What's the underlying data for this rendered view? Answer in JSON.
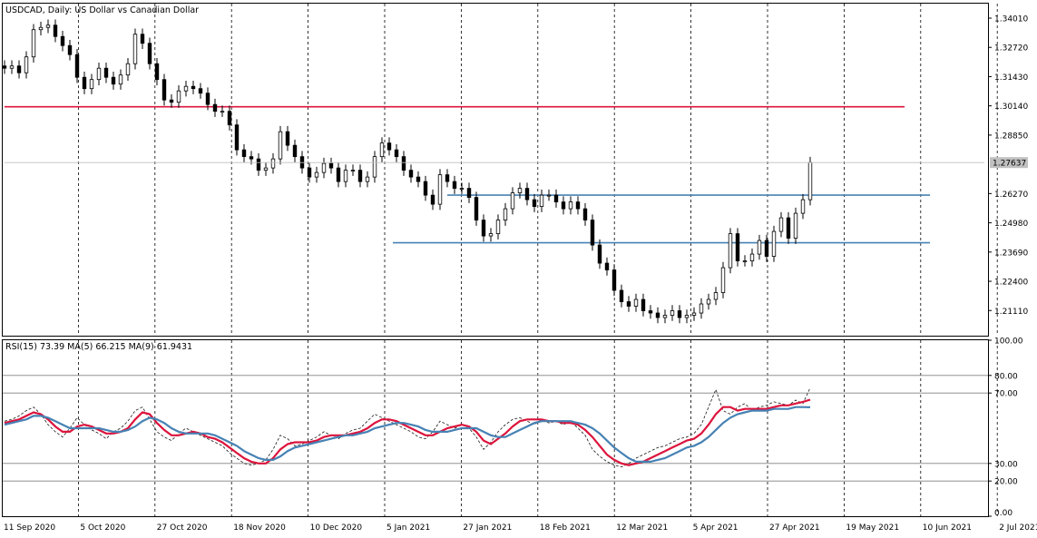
{
  "chart_data": [
    {
      "type": "candlestick",
      "title": "USDCAD, Daily:  US Dollar vs Canadian Dollar",
      "ylim": [
        1.2,
        1.3465
      ],
      "y_ticks": [
        "1.34010",
        "1.32720",
        "1.31430",
        "1.30140",
        "1.28850",
        "1.27637",
        "1.26270",
        "1.24980",
        "1.23690",
        "1.22400",
        "1.21110"
      ],
      "last_price": "1.27637",
      "x_labels": [
        "11 Sep 2020",
        "5 Oct 2020",
        "27 Oct 2020",
        "18 Nov 2020",
        "10 Dec 2020",
        "5 Jan 2021",
        "27 Jan 2021",
        "18 Feb 2021",
        "12 Mar 2021",
        "5 Apr 2021",
        "27 Apr 2021",
        "19 May 2021",
        "10 Jun 2021",
        "2 Jul 2021"
      ],
      "bars": [
        {
          "t": 0,
          "c": 1.318
        },
        {
          "t": 2,
          "c": 1.319
        },
        {
          "t": 4,
          "c": 1.316
        },
        {
          "t": 6,
          "c": 1.323
        },
        {
          "t": 8,
          "c": 1.335
        },
        {
          "t": 10,
          "c": 1.336
        },
        {
          "t": 12,
          "c": 1.337
        },
        {
          "t": 14,
          "c": 1.332
        },
        {
          "t": 16,
          "c": 1.328
        },
        {
          "t": 18,
          "c": 1.324
        },
        {
          "t": 20,
          "c": 1.314
        },
        {
          "t": 22,
          "c": 1.309
        },
        {
          "t": 24,
          "c": 1.313
        },
        {
          "t": 26,
          "c": 1.318
        },
        {
          "t": 28,
          "c": 1.314
        },
        {
          "t": 30,
          "c": 1.311
        },
        {
          "t": 32,
          "c": 1.315
        },
        {
          "t": 34,
          "c": 1.32
        },
        {
          "t": 36,
          "c": 1.333
        },
        {
          "t": 38,
          "c": 1.329
        },
        {
          "t": 40,
          "c": 1.32
        },
        {
          "t": 42,
          "c": 1.313
        },
        {
          "t": 44,
          "c": 1.304
        },
        {
          "t": 46,
          "c": 1.303
        },
        {
          "t": 48,
          "c": 1.308
        },
        {
          "t": 50,
          "c": 1.31
        },
        {
          "t": 52,
          "c": 1.309
        },
        {
          "t": 54,
          "c": 1.307
        },
        {
          "t": 56,
          "c": 1.302
        },
        {
          "t": 58,
          "c": 1.299
        },
        {
          "t": 60,
          "c": 1.299
        },
        {
          "t": 62,
          "c": 1.293
        },
        {
          "t": 64,
          "c": 1.282
        },
        {
          "t": 66,
          "c": 1.279
        },
        {
          "t": 68,
          "c": 1.278
        },
        {
          "t": 70,
          "c": 1.273
        },
        {
          "t": 72,
          "c": 1.274
        },
        {
          "t": 74,
          "c": 1.278
        },
        {
          "t": 76,
          "c": 1.29
        },
        {
          "t": 78,
          "c": 1.284
        },
        {
          "t": 80,
          "c": 1.279
        },
        {
          "t": 82,
          "c": 1.274
        },
        {
          "t": 84,
          "c": 1.27
        },
        {
          "t": 86,
          "c": 1.272
        },
        {
          "t": 88,
          "c": 1.276
        },
        {
          "t": 90,
          "c": 1.274
        },
        {
          "t": 92,
          "c": 1.268
        },
        {
          "t": 94,
          "c": 1.273
        },
        {
          "t": 96,
          "c": 1.273
        },
        {
          "t": 98,
          "c": 1.268
        },
        {
          "t": 100,
          "c": 1.27
        },
        {
          "t": 102,
          "c": 1.279
        },
        {
          "t": 104,
          "c": 1.285
        },
        {
          "t": 106,
          "c": 1.282
        },
        {
          "t": 108,
          "c": 1.279
        },
        {
          "t": 110,
          "c": 1.273
        },
        {
          "t": 112,
          "c": 1.27
        },
        {
          "t": 114,
          "c": 1.268
        },
        {
          "t": 116,
          "c": 1.262
        },
        {
          "t": 118,
          "c": 1.258
        },
        {
          "t": 120,
          "c": 1.271
        },
        {
          "t": 122,
          "c": 1.268
        },
        {
          "t": 124,
          "c": 1.265
        },
        {
          "t": 126,
          "c": 1.265
        },
        {
          "t": 128,
          "c": 1.261
        },
        {
          "t": 130,
          "c": 1.251
        },
        {
          "t": 132,
          "c": 1.244
        },
        {
          "t": 134,
          "c": 1.245
        },
        {
          "t": 136,
          "c": 1.251
        },
        {
          "t": 138,
          "c": 1.256
        },
        {
          "t": 140,
          "c": 1.263
        },
        {
          "t": 142,
          "c": 1.265
        },
        {
          "t": 144,
          "c": 1.26
        },
        {
          "t": 146,
          "c": 1.257
        },
        {
          "t": 148,
          "c": 1.262
        },
        {
          "t": 150,
          "c": 1.262
        },
        {
          "t": 152,
          "c": 1.259
        },
        {
          "t": 154,
          "c": 1.256
        },
        {
          "t": 156,
          "c": 1.259
        },
        {
          "t": 158,
          "c": 1.256
        },
        {
          "t": 160,
          "c": 1.251
        },
        {
          "t": 162,
          "c": 1.24
        },
        {
          "t": 164,
          "c": 1.232
        },
        {
          "t": 166,
          "c": 1.229
        },
        {
          "t": 168,
          "c": 1.22
        },
        {
          "t": 170,
          "c": 1.215
        },
        {
          "t": 172,
          "c": 1.213
        },
        {
          "t": 174,
          "c": 1.216
        },
        {
          "t": 176,
          "c": 1.211
        },
        {
          "t": 178,
          "c": 1.21
        },
        {
          "t": 180,
          "c": 1.208
        },
        {
          "t": 182,
          "c": 1.209
        },
        {
          "t": 184,
          "c": 1.211
        },
        {
          "t": 186,
          "c": 1.208
        },
        {
          "t": 188,
          "c": 1.209
        },
        {
          "t": 190,
          "c": 1.21
        },
        {
          "t": 192,
          "c": 1.214
        },
        {
          "t": 194,
          "c": 1.216
        },
        {
          "t": 196,
          "c": 1.219
        },
        {
          "t": 198,
          "c": 1.23
        },
        {
          "t": 200,
          "c": 1.245
        },
        {
          "t": 202,
          "c": 1.233
        },
        {
          "t": 204,
          "c": 1.233
        },
        {
          "t": 206,
          "c": 1.236
        },
        {
          "t": 208,
          "c": 1.242
        },
        {
          "t": 210,
          "c": 1.235
        },
        {
          "t": 212,
          "c": 1.246
        },
        {
          "t": 214,
          "c": 1.252
        },
        {
          "t": 216,
          "c": 1.243
        },
        {
          "t": 218,
          "c": 1.254
        },
        {
          "t": 220,
          "c": 1.26
        },
        {
          "t": 222,
          "c": 1.2764
        }
      ],
      "x_span": 270,
      "hlines": [
        {
          "name": "resistance",
          "value": 1.301,
          "color": "#dc143c",
          "x_from": 0,
          "x_to": 248
        },
        {
          "name": "upper-support",
          "value": 1.262,
          "color": "#4682b4",
          "x_from": 122,
          "x_to": 255
        },
        {
          "name": "lower-support",
          "value": 1.241,
          "color": "#4682b4",
          "x_from": 107,
          "x_to": 255
        }
      ],
      "grid": "vertical dashed",
      "bull_color": "#000000",
      "bear_color": "#000000"
    },
    {
      "type": "line",
      "title": "RSI(15) 73.39 MA(5) 66.215 MA(9) 61.9431",
      "ylim": [
        0,
        100
      ],
      "y_ticks": [
        "100.00",
        "80.00",
        "70.00",
        "30.00",
        "20.00",
        "0.00"
      ],
      "levels": [
        80,
        70,
        30,
        20
      ],
      "series": [
        {
          "key": "rsi",
          "values": [
            54,
            55,
            57,
            60,
            62,
            58,
            52,
            48,
            45,
            50,
            56,
            52,
            49,
            47,
            44,
            48,
            50,
            54,
            60,
            62,
            55,
            48,
            45,
            43,
            47,
            50,
            48,
            46,
            44,
            42,
            40,
            36,
            33,
            30,
            29,
            30,
            32,
            38,
            46,
            44,
            40,
            41,
            43,
            45,
            48,
            46,
            44,
            47,
            49,
            50,
            54,
            58,
            56,
            54,
            52,
            50,
            48,
            45,
            44,
            48,
            54,
            52,
            50,
            52,
            50,
            45,
            38,
            42,
            48,
            52,
            55,
            56,
            54,
            52,
            55,
            53,
            54,
            52,
            54,
            50,
            46,
            38,
            34,
            31,
            29,
            28,
            30,
            33,
            35,
            37,
            39,
            40,
            42,
            44,
            45,
            47,
            52,
            62,
            72,
            60,
            58,
            62,
            64,
            60,
            62,
            63,
            65,
            64,
            63,
            66,
            64,
            73
          ],
          "color": "#1a1a1a",
          "dashed": true
        },
        {
          "key": "ma5",
          "values": [
            53,
            54,
            55,
            57,
            59,
            58,
            55,
            51,
            48,
            48,
            51,
            52,
            51,
            49,
            47,
            47,
            48,
            50,
            55,
            59,
            58,
            53,
            49,
            46,
            46,
            47,
            48,
            47,
            45,
            44,
            42,
            39,
            36,
            33,
            31,
            30,
            30,
            33,
            38,
            41,
            42,
            42,
            42,
            43,
            45,
            46,
            46,
            46,
            47,
            48,
            50,
            53,
            55,
            55,
            54,
            52,
            50,
            48,
            46,
            46,
            48,
            50,
            51,
            52,
            51,
            48,
            43,
            41,
            44,
            47,
            51,
            54,
            55,
            55,
            55,
            54,
            54,
            53,
            53,
            52,
            49,
            45,
            40,
            35,
            32,
            30,
            29,
            30,
            31,
            33,
            35,
            37,
            39,
            41,
            43,
            44,
            47,
            52,
            58,
            62,
            62,
            60,
            61,
            61,
            61,
            61,
            62,
            63,
            63,
            64,
            65,
            66.2
          ],
          "color": "#dc143c",
          "dashed": false
        },
        {
          "key": "ma9",
          "values": [
            52,
            53,
            54,
            55,
            57,
            57,
            56,
            54,
            52,
            50,
            50,
            50,
            50,
            50,
            49,
            48,
            48,
            49,
            51,
            54,
            56,
            55,
            53,
            50,
            48,
            47,
            47,
            47,
            47,
            46,
            44,
            42,
            40,
            37,
            35,
            33,
            32,
            32,
            34,
            37,
            39,
            40,
            41,
            42,
            43,
            44,
            45,
            46,
            46,
            47,
            48,
            50,
            51,
            52,
            53,
            53,
            52,
            51,
            49,
            48,
            48,
            48,
            49,
            50,
            50,
            50,
            48,
            46,
            45,
            45,
            47,
            49,
            51,
            53,
            54,
            54,
            54,
            54,
            54,
            53,
            52,
            50,
            47,
            43,
            39,
            36,
            33,
            31,
            31,
            31,
            32,
            33,
            35,
            37,
            39,
            40,
            42,
            45,
            49,
            53,
            56,
            58,
            59,
            60,
            60,
            60,
            61,
            61,
            61,
            62,
            62,
            61.9
          ],
          "color": "#4682b4",
          "dashed": false
        }
      ]
    }
  ]
}
